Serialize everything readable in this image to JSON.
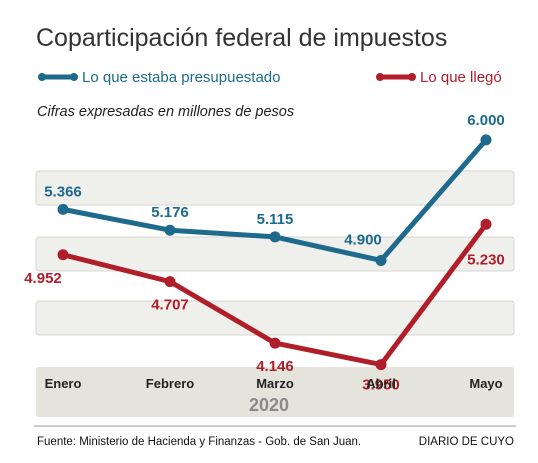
{
  "title": "Coparticipación federal de impuestos",
  "subtitle": "Cifras expresadas en millones de pesos",
  "footer": {
    "source": "Fuente: Ministerio de Hacienda y Finanzas - Gob. de San Juan.",
    "brand": "DIARIO DE CUYO"
  },
  "colors": {
    "presupuestado": "#1e6a8c",
    "llego": "#b01e2a",
    "band": "#efefeb",
    "axis_bg": "#e4e4dd"
  },
  "chart_data": {
    "type": "line",
    "categories": [
      "Enero",
      "Febrero",
      "Marzo",
      "Abril",
      "Mayo"
    ],
    "year_label": "2020",
    "series": [
      {
        "name": "Lo que estaba presupuestado",
        "values": [
          5366,
          5176,
          5115,
          4900,
          6000
        ],
        "labels": [
          "5.366",
          "5.176",
          "5.115",
          "4.900",
          "6.000"
        ]
      },
      {
        "name": "Lo que llegó",
        "values": [
          4952,
          4707,
          4146,
          3950,
          5230
        ],
        "labels": [
          "4.952",
          "4.707",
          "4.146",
          "3.950",
          "5.230"
        ]
      }
    ],
    "ylim": [
      3700,
      6300
    ],
    "grid": false,
    "legend": "top"
  }
}
